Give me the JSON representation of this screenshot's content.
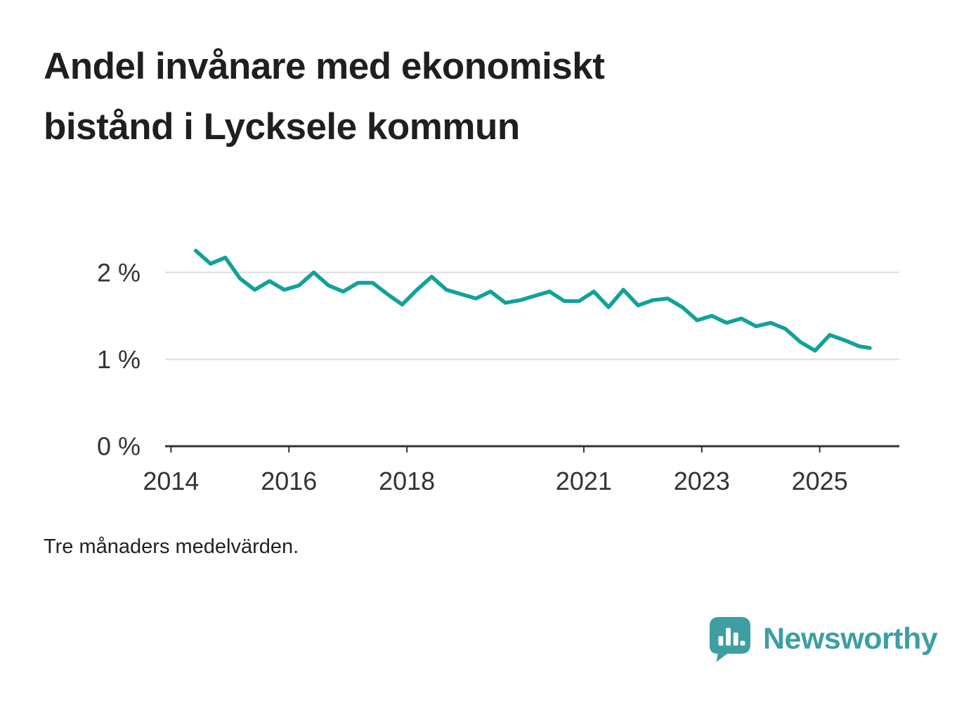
{
  "title": {
    "lines": [
      "Andel invånare med ekonomiskt",
      "bistånd i Lycksele kommun"
    ]
  },
  "footnote": "Tre månaders medelvärden.",
  "branding": {
    "name": "Newsworthy"
  },
  "colors": {
    "line": "#12a19a",
    "brand": "#3d9fa2",
    "grid": "#dddddd",
    "axis": "#333333",
    "title_text": "#1f1f1f"
  },
  "chart_data": {
    "type": "line",
    "title": "Andel invånare med ekonomiskt bistånd i Lycksele kommun",
    "xlabel": "",
    "ylabel": "",
    "unit": "%",
    "xlim": [
      2013.9,
      2026.35
    ],
    "ylim": [
      0,
      2.45
    ],
    "grid": "horizontal",
    "legend": "none",
    "x_ticks": [
      {
        "value": 2014,
        "label": "2014"
      },
      {
        "value": 2016,
        "label": "2016"
      },
      {
        "value": 2018,
        "label": "2018"
      },
      {
        "value": 2021,
        "label": "2021"
      },
      {
        "value": 2023,
        "label": "2023"
      },
      {
        "value": 2025,
        "label": "2025"
      }
    ],
    "y_ticks": [
      {
        "value": 0,
        "label": "0 %"
      },
      {
        "value": 1,
        "label": "1 %"
      },
      {
        "value": 2,
        "label": "2 %"
      }
    ],
    "x": [
      2014.42,
      2014.67,
      2014.92,
      2015.17,
      2015.42,
      2015.67,
      2015.92,
      2016.17,
      2016.42,
      2016.67,
      2016.92,
      2017.17,
      2017.42,
      2017.67,
      2017.92,
      2018.17,
      2018.42,
      2018.67,
      2018.92,
      2019.17,
      2019.42,
      2019.67,
      2019.92,
      2020.17,
      2020.42,
      2020.67,
      2020.92,
      2021.17,
      2021.42,
      2021.67,
      2021.92,
      2022.17,
      2022.42,
      2022.67,
      2022.92,
      2023.17,
      2023.42,
      2023.67,
      2023.92,
      2024.17,
      2024.42,
      2024.67,
      2024.92,
      2025.17,
      2025.42,
      2025.67,
      2025.85
    ],
    "values": [
      2.25,
      2.1,
      2.17,
      1.93,
      1.8,
      1.9,
      1.8,
      1.85,
      2.0,
      1.85,
      1.78,
      1.88,
      1.88,
      1.75,
      1.63,
      1.8,
      1.95,
      1.8,
      1.75,
      1.7,
      1.78,
      1.65,
      1.68,
      1.73,
      1.78,
      1.67,
      1.67,
      1.78,
      1.6,
      1.8,
      1.62,
      1.68,
      1.7,
      1.6,
      1.45,
      1.5,
      1.42,
      1.47,
      1.38,
      1.42,
      1.35,
      1.2,
      1.1,
      1.28,
      1.22,
      1.15,
      1.13
    ]
  }
}
